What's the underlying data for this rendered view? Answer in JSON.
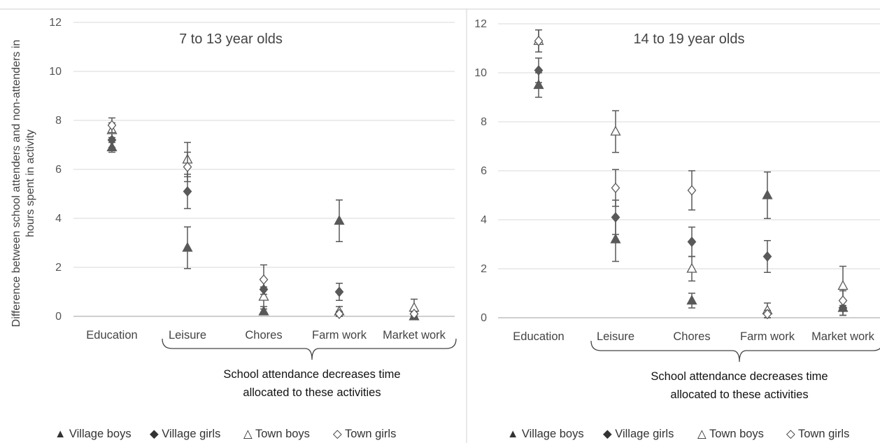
{
  "figure": {
    "ylabel_line1": "Difference between school attenders and non-attenders in",
    "ylabel_line2": "hours spent in activity"
  },
  "legend": [
    {
      "label": "▲ Village boys",
      "marker": "triangle-filled"
    },
    {
      "label": "◆ Village girls",
      "marker": "diamond-filled"
    },
    {
      "label": "△ Town boys",
      "marker": "triangle-open"
    },
    {
      "label": "◇ Town girls",
      "marker": "diamond-open"
    }
  ],
  "colors": {
    "marker": "#595959",
    "errorbar": "#595959",
    "grid": "#d9d9d9",
    "axis": "#bfbfbf"
  },
  "chart_data": [
    {
      "type": "scatter",
      "title": "7 to 13 year olds",
      "ylabel": "Difference between school attenders and non-attenders in hours spent in activity",
      "categories": [
        "Education",
        "Leisure",
        "Chores",
        "Farm work",
        "Market work"
      ],
      "ylim": [
        0,
        12
      ],
      "yticks": [
        "0",
        "2",
        "4",
        "6",
        "8",
        "10",
        "12"
      ],
      "grid": true,
      "annotation_line1": "School attendance decreases time",
      "annotation_line2": "allocated to these activities",
      "series": [
        {
          "name": "Village boys",
          "values": [
            6.9,
            2.8,
            0.2,
            3.9,
            0.0
          ],
          "err": [
            0.2,
            0.85,
            0.1,
            0.85,
            0.1
          ]
        },
        {
          "name": "Village girls",
          "values": [
            7.2,
            5.1,
            1.1,
            1.0,
            0.1
          ],
          "err": [
            0.3,
            0.7,
            0.4,
            0.35,
            0.1
          ]
        },
        {
          "name": "Town boys",
          "values": [
            7.6,
            6.4,
            0.8,
            0.2,
            0.35
          ],
          "err": [
            0.3,
            0.7,
            0.4,
            0.2,
            0.35
          ]
        },
        {
          "name": "Town girls",
          "values": [
            7.8,
            6.1,
            1.5,
            0.1,
            0.1
          ],
          "err": [
            0.3,
            0.6,
            0.6,
            0.1,
            0.1
          ]
        }
      ]
    },
    {
      "type": "scatter",
      "title": "14 to 19 year olds",
      "ylabel": "",
      "categories": [
        "Education",
        "Leisure",
        "Chores",
        "Farm work",
        "Market work"
      ],
      "ylim": [
        0,
        12
      ],
      "yticks": [
        "0",
        "2",
        "4",
        "6",
        "8",
        "10",
        "12"
      ],
      "grid": true,
      "annotation_line1": "School attendance decreases time",
      "annotation_line2": "allocated to these activities",
      "series": [
        {
          "name": "Village boys",
          "values": [
            9.5,
            3.2,
            0.7,
            5.0,
            0.4
          ],
          "err": [
            0.5,
            0.9,
            0.3,
            0.95,
            0.3
          ]
        },
        {
          "name": "Village girls",
          "values": [
            10.1,
            4.1,
            3.1,
            2.5,
            0.4
          ],
          "err": [
            0.5,
            0.7,
            0.6,
            0.65,
            0.3
          ]
        },
        {
          "name": "Town boys",
          "values": [
            11.3,
            7.6,
            2.0,
            0.3,
            1.3
          ],
          "err": [
            0.45,
            0.85,
            0.5,
            0.3,
            0.8
          ]
        },
        {
          "name": "Town girls",
          "values": [
            11.3,
            5.3,
            5.2,
            0.15,
            0.7
          ],
          "err": [
            0.45,
            0.75,
            0.8,
            0.15,
            0.4
          ]
        }
      ]
    }
  ]
}
